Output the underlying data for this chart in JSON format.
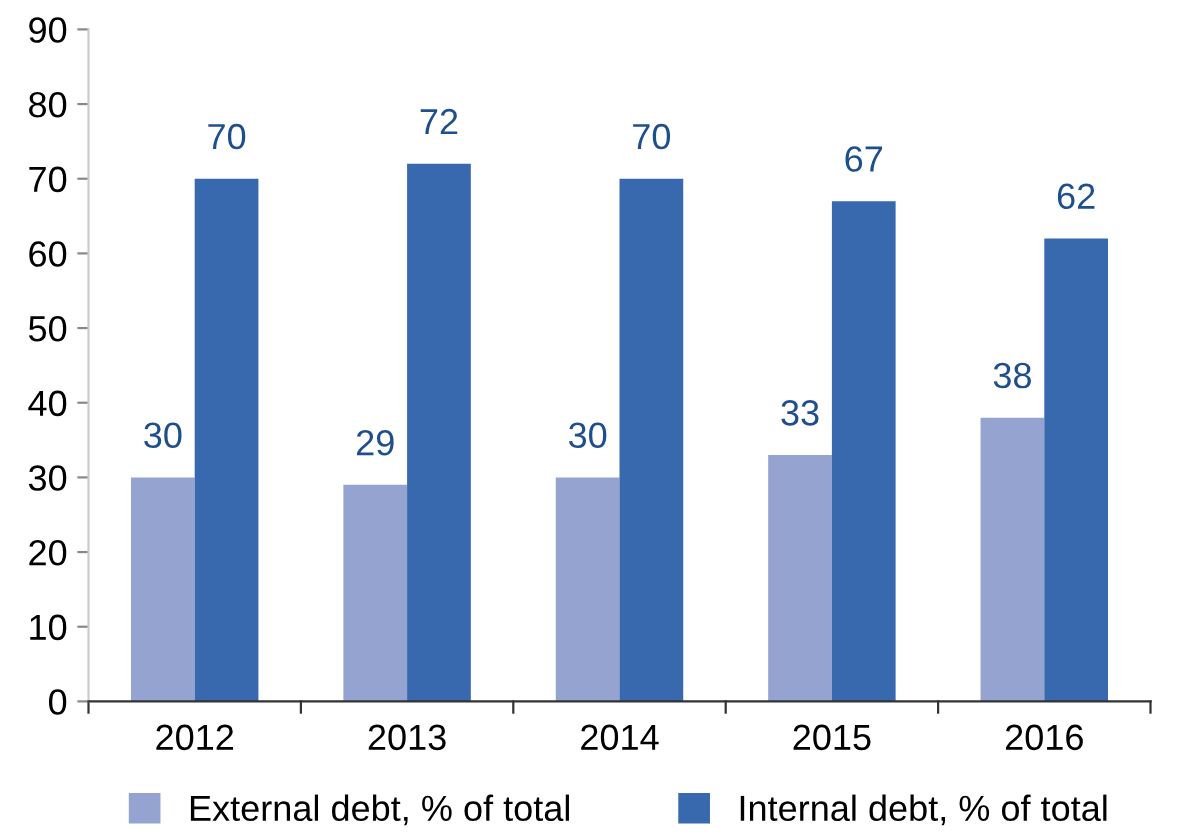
{
  "chart_data": {
    "type": "bar",
    "categories": [
      "2012",
      "2013",
      "2014",
      "2015",
      "2016"
    ],
    "series": [
      {
        "name": "External debt, % of total",
        "color": "#95a3d1",
        "values": [
          30,
          29,
          30,
          33,
          38
        ]
      },
      {
        "name": "Internal debt, % of total",
        "color": "#3868ad",
        "values": [
          70,
          72,
          70,
          67,
          62
        ]
      }
    ],
    "ylim": [
      0,
      90
    ],
    "yticks": [
      0,
      10,
      20,
      30,
      40,
      50,
      60,
      70,
      80,
      90
    ],
    "grid": false,
    "legend": "bottom",
    "data_labels": true
  }
}
